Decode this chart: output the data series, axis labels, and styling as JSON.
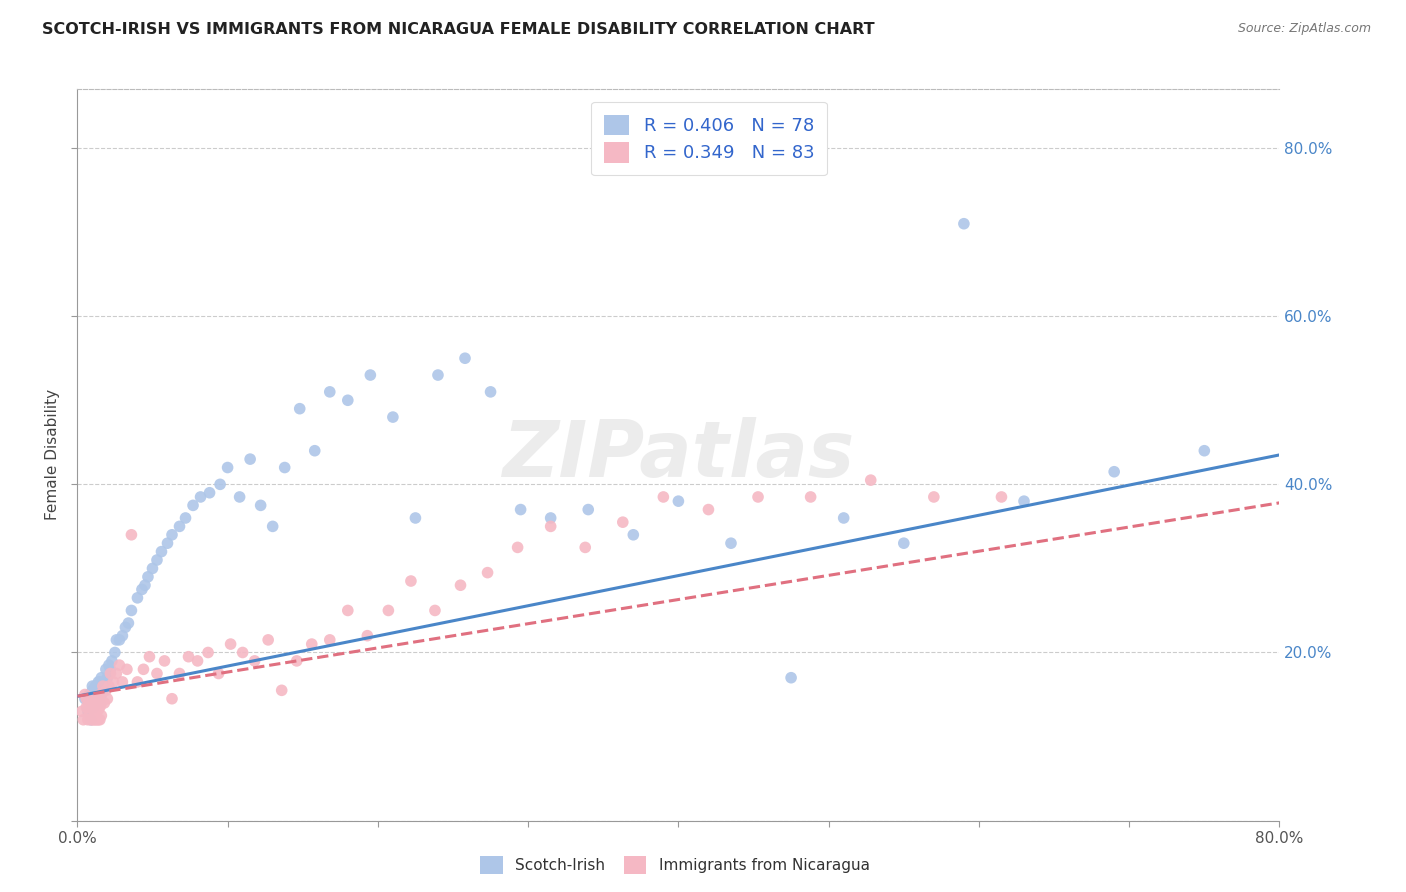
{
  "title": "SCOTCH-IRISH VS IMMIGRANTS FROM NICARAGUA FEMALE DISABILITY CORRELATION CHART",
  "source": "Source: ZipAtlas.com",
  "ylabel": "Female Disability",
  "series1_label": "Scotch-Irish",
  "series2_label": "Immigrants from Nicaragua",
  "series1_R": 0.406,
  "series1_N": 78,
  "series2_R": 0.349,
  "series2_N": 83,
  "series1_color": "#aec6e8",
  "series2_color": "#f5b8c4",
  "line1_color": "#4a86c8",
  "line2_color": "#e07080",
  "watermark": "ZIPatlas",
  "xlim": [
    0.0,
    0.8
  ],
  "ylim": [
    0.0,
    0.87
  ],
  "yticks": [
    0.0,
    0.2,
    0.4,
    0.6,
    0.8
  ],
  "yticklabels_right": [
    "",
    "20.0%",
    "40.0%",
    "60.0%",
    "80.0%"
  ],
  "line1_x0": 0.0,
  "line1_y0": 0.148,
  "line1_x1": 0.8,
  "line1_y1": 0.435,
  "line2_x0": 0.0,
  "line2_y0": 0.148,
  "line2_x1": 0.8,
  "line2_y1": 0.378,
  "series1_x": [
    0.005,
    0.007,
    0.008,
    0.009,
    0.01,
    0.01,
    0.01,
    0.011,
    0.011,
    0.012,
    0.012,
    0.013,
    0.013,
    0.014,
    0.014,
    0.015,
    0.015,
    0.015,
    0.016,
    0.016,
    0.017,
    0.018,
    0.019,
    0.02,
    0.021,
    0.022,
    0.023,
    0.025,
    0.026,
    0.028,
    0.03,
    0.032,
    0.034,
    0.036,
    0.04,
    0.043,
    0.045,
    0.047,
    0.05,
    0.053,
    0.056,
    0.06,
    0.063,
    0.068,
    0.072,
    0.077,
    0.082,
    0.088,
    0.095,
    0.1,
    0.108,
    0.115,
    0.122,
    0.13,
    0.138,
    0.148,
    0.158,
    0.168,
    0.18,
    0.195,
    0.21,
    0.225,
    0.24,
    0.258,
    0.275,
    0.295,
    0.315,
    0.34,
    0.37,
    0.4,
    0.435,
    0.475,
    0.51,
    0.55,
    0.59,
    0.63,
    0.69,
    0.75
  ],
  "series1_y": [
    0.145,
    0.13,
    0.15,
    0.12,
    0.14,
    0.155,
    0.16,
    0.135,
    0.15,
    0.145,
    0.16,
    0.14,
    0.155,
    0.145,
    0.165,
    0.14,
    0.15,
    0.165,
    0.15,
    0.17,
    0.155,
    0.165,
    0.18,
    0.17,
    0.185,
    0.18,
    0.19,
    0.2,
    0.215,
    0.215,
    0.22,
    0.23,
    0.235,
    0.25,
    0.265,
    0.275,
    0.28,
    0.29,
    0.3,
    0.31,
    0.32,
    0.33,
    0.34,
    0.35,
    0.36,
    0.375,
    0.385,
    0.39,
    0.4,
    0.42,
    0.385,
    0.43,
    0.375,
    0.35,
    0.42,
    0.49,
    0.44,
    0.51,
    0.5,
    0.53,
    0.48,
    0.36,
    0.53,
    0.55,
    0.51,
    0.37,
    0.36,
    0.37,
    0.34,
    0.38,
    0.33,
    0.17,
    0.36,
    0.33,
    0.71,
    0.38,
    0.415,
    0.44
  ],
  "series2_x": [
    0.003,
    0.004,
    0.005,
    0.006,
    0.006,
    0.007,
    0.007,
    0.007,
    0.008,
    0.008,
    0.008,
    0.009,
    0.009,
    0.009,
    0.01,
    0.01,
    0.01,
    0.011,
    0.011,
    0.011,
    0.012,
    0.012,
    0.012,
    0.013,
    0.013,
    0.013,
    0.014,
    0.014,
    0.014,
    0.015,
    0.015,
    0.015,
    0.016,
    0.016,
    0.017,
    0.018,
    0.019,
    0.02,
    0.021,
    0.022,
    0.024,
    0.026,
    0.028,
    0.03,
    0.033,
    0.036,
    0.04,
    0.044,
    0.048,
    0.053,
    0.058,
    0.063,
    0.068,
    0.074,
    0.08,
    0.087,
    0.094,
    0.102,
    0.11,
    0.118,
    0.127,
    0.136,
    0.146,
    0.156,
    0.168,
    0.18,
    0.193,
    0.207,
    0.222,
    0.238,
    0.255,
    0.273,
    0.293,
    0.315,
    0.338,
    0.363,
    0.39,
    0.42,
    0.453,
    0.488,
    0.528,
    0.57,
    0.615
  ],
  "series2_y": [
    0.13,
    0.12,
    0.15,
    0.135,
    0.145,
    0.12,
    0.135,
    0.145,
    0.125,
    0.135,
    0.145,
    0.12,
    0.135,
    0.145,
    0.12,
    0.135,
    0.145,
    0.12,
    0.13,
    0.145,
    0.12,
    0.13,
    0.14,
    0.12,
    0.13,
    0.145,
    0.12,
    0.132,
    0.145,
    0.12,
    0.135,
    0.15,
    0.125,
    0.14,
    0.16,
    0.14,
    0.155,
    0.145,
    0.16,
    0.175,
    0.165,
    0.175,
    0.185,
    0.165,
    0.18,
    0.34,
    0.165,
    0.18,
    0.195,
    0.175,
    0.19,
    0.145,
    0.175,
    0.195,
    0.19,
    0.2,
    0.175,
    0.21,
    0.2,
    0.19,
    0.215,
    0.155,
    0.19,
    0.21,
    0.215,
    0.25,
    0.22,
    0.25,
    0.285,
    0.25,
    0.28,
    0.295,
    0.325,
    0.35,
    0.325,
    0.355,
    0.385,
    0.37,
    0.385,
    0.385,
    0.405,
    0.385,
    0.385
  ]
}
